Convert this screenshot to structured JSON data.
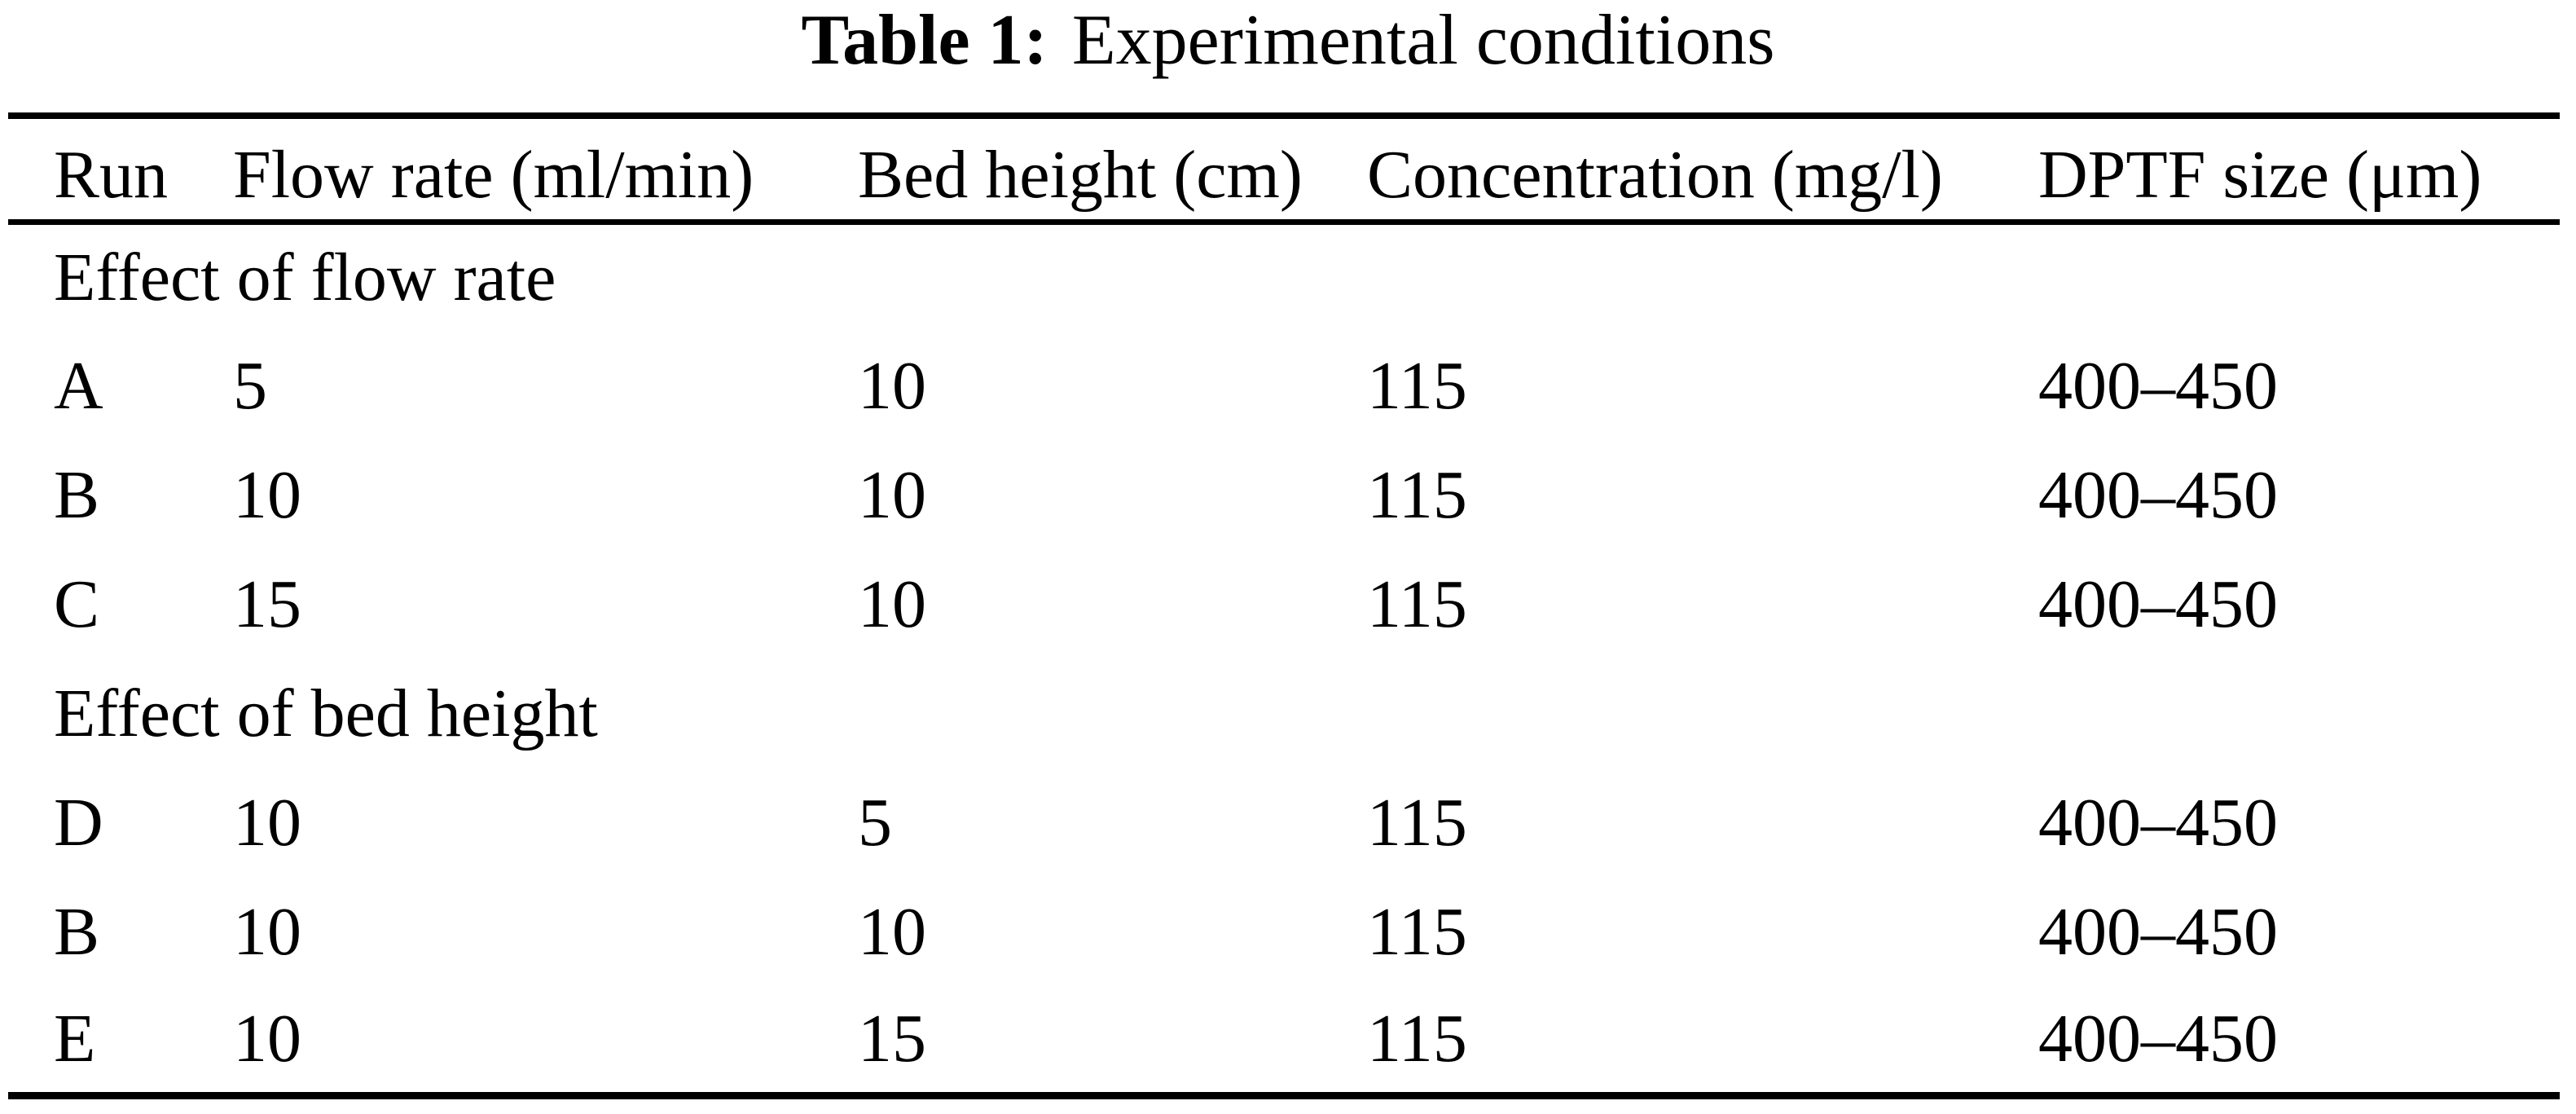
{
  "caption": {
    "prefix": "Table 1:",
    "text": "Experimental conditions"
  },
  "table": {
    "columns": [
      "Run",
      "Flow rate (ml/min)",
      "Bed height (cm)",
      "Concentration (mg/l)",
      "DPTF size (μm)"
    ],
    "sections": [
      {
        "label": "Effect of flow rate",
        "rows": [
          [
            "A",
            "5",
            "10",
            "115",
            "400–450"
          ],
          [
            "B",
            "10",
            "10",
            "115",
            "400–450"
          ],
          [
            "C",
            "15",
            "10",
            "115",
            "400–450"
          ]
        ]
      },
      {
        "label": "Effect of bed height",
        "rows": [
          [
            "D",
            "10",
            "5",
            "115",
            "400–450"
          ],
          [
            "B",
            "10",
            "10",
            "115",
            "400–450"
          ],
          [
            "E",
            "10",
            "15",
            "115",
            "400–450"
          ]
        ]
      }
    ]
  },
  "colors": {
    "background": "#ffffff",
    "text": "#000000",
    "rule": "#000000"
  }
}
